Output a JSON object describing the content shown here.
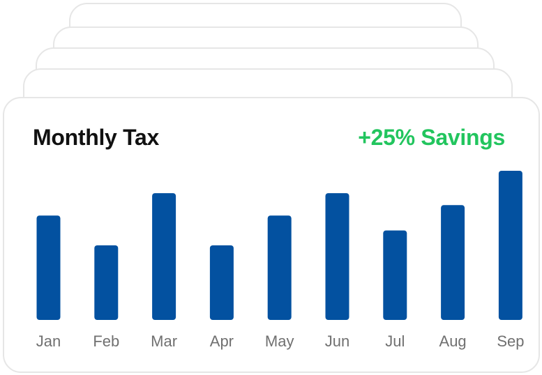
{
  "header": {
    "title": "Monthly Tax",
    "badge": "+25% Savings"
  },
  "colors": {
    "bar": "#0351a0",
    "badge": "#22c55e",
    "title": "#111111",
    "tick": "#707070"
  },
  "chart_data": {
    "type": "bar",
    "title": "Monthly Tax",
    "categories": [
      "Jan",
      "Feb",
      "Mar",
      "Apr",
      "May",
      "Jun",
      "Jul",
      "Aug",
      "Sep"
    ],
    "values": [
      70,
      50,
      85,
      50,
      70,
      85,
      60,
      77,
      100
    ],
    "xlabel": "",
    "ylabel": "",
    "ylim": [
      0,
      100
    ],
    "grid": false,
    "legend": "none",
    "annotation": "+25% Savings"
  }
}
